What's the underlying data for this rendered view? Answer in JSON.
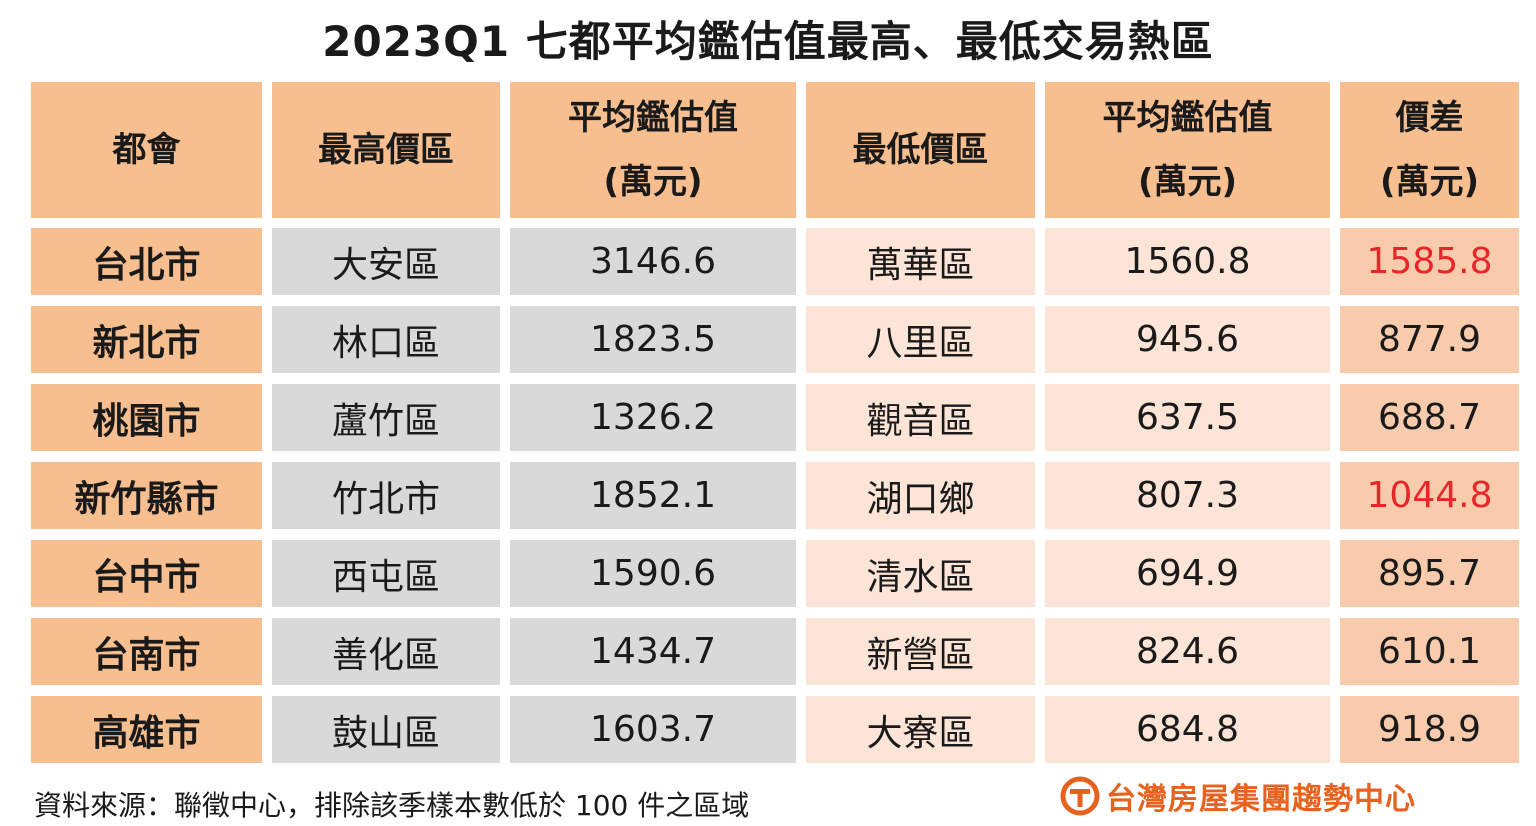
{
  "title": "2023Q1  七都平均鑑估值最高、最低交易熱區",
  "footer": {
    "source": "資料來源：聯徵中心，排除該季樣本數低於 100 件之區域",
    "logo_text": "台灣房屋集團趨勢中心",
    "logo_color": "#e8621f"
  },
  "chart_data": {
    "type": "table",
    "title": "2023Q1  七都平均鑑估值最高、最低交易熱區",
    "columns": [
      {
        "line1": "都會",
        "line2": ""
      },
      {
        "line1": "最高價區",
        "line2": ""
      },
      {
        "line1": "平均鑑估值",
        "line2": "(萬元)"
      },
      {
        "line1": "最低價區",
        "line2": ""
      },
      {
        "line1": "平均鑑估值",
        "line2": "(萬元)"
      },
      {
        "line1": "價差",
        "line2": "(萬元)"
      }
    ],
    "rows": [
      {
        "metro": "台北市",
        "high_area": "大安區",
        "high_value": "3146.6",
        "low_area": "萬華區",
        "low_value": "1560.8",
        "diff": "1585.8",
        "highlight": true
      },
      {
        "metro": "新北市",
        "high_area": "林口區",
        "high_value": "1823.5",
        "low_area": "八里區",
        "low_value": "945.6",
        "diff": "877.9",
        "highlight": false
      },
      {
        "metro": "桃園市",
        "high_area": "蘆竹區",
        "high_value": "1326.2",
        "low_area": "觀音區",
        "low_value": "637.5",
        "diff": "688.7",
        "highlight": false
      },
      {
        "metro": "新竹縣市",
        "high_area": "竹北市",
        "high_value": "1852.1",
        "low_area": "湖口鄉",
        "low_value": "807.3",
        "diff": "1044.8",
        "highlight": true
      },
      {
        "metro": "台中市",
        "high_area": "西屯區",
        "high_value": "1590.6",
        "low_area": "清水區",
        "low_value": "694.9",
        "diff": "895.7",
        "highlight": false
      },
      {
        "metro": "台南市",
        "high_area": "善化區",
        "high_value": "1434.7",
        "low_area": "新營區",
        "low_value": "824.6",
        "diff": "610.1",
        "highlight": false
      },
      {
        "metro": "高雄市",
        "high_area": "鼓山區",
        "high_value": "1603.7",
        "low_area": "大寮區",
        "low_value": "684.8",
        "diff": "918.9",
        "highlight": false
      }
    ],
    "colors": {
      "header_bg": "#f7be8f",
      "metro_bg": "#f7be8f",
      "high_bg": "#d9d9d9",
      "low_bg": "#fce4d6",
      "diff_bg": "#f8cbad",
      "highlight_text": "#e8262a"
    }
  }
}
